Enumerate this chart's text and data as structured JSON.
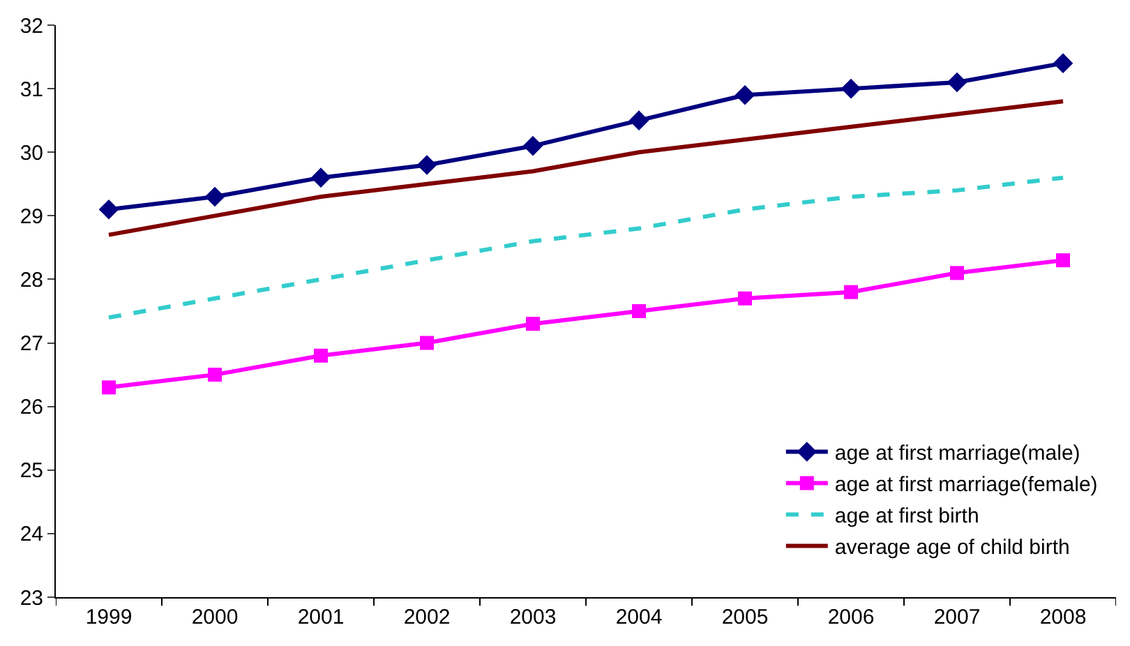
{
  "chart_data": {
    "type": "line",
    "categories": [
      "1999",
      "2000",
      "2001",
      "2002",
      "2003",
      "2004",
      "2005",
      "2006",
      "2007",
      "2008"
    ],
    "series": [
      {
        "name": "age at first marriage(male)",
        "color": "#000080",
        "marker": "diamond",
        "line_style": "solid",
        "values": [
          29.1,
          29.3,
          29.6,
          29.8,
          30.1,
          30.5,
          30.9,
          31.0,
          31.1,
          31.4
        ]
      },
      {
        "name": "age at first marriage(female)",
        "color": "#ff00ff",
        "marker": "square",
        "line_style": "solid",
        "values": [
          26.3,
          26.5,
          26.8,
          27.0,
          27.3,
          27.5,
          27.7,
          27.8,
          28.1,
          28.3
        ]
      },
      {
        "name": "age at first birth",
        "color": "#33cccc",
        "marker": "none",
        "line_style": "dashed",
        "values": [
          27.4,
          27.7,
          28.0,
          28.3,
          28.6,
          28.8,
          29.1,
          29.3,
          29.4,
          29.6
        ]
      },
      {
        "name": "average age of child birth",
        "color": "#800000",
        "marker": "none",
        "line_style": "solid",
        "values": [
          28.7,
          29.0,
          29.3,
          29.5,
          29.7,
          30.0,
          30.2,
          30.4,
          30.6,
          30.8
        ]
      }
    ],
    "ylim": [
      23,
      32
    ],
    "yticks": [
      23,
      24,
      25,
      26,
      27,
      28,
      29,
      30,
      31,
      32
    ],
    "legend": "bottom right"
  }
}
